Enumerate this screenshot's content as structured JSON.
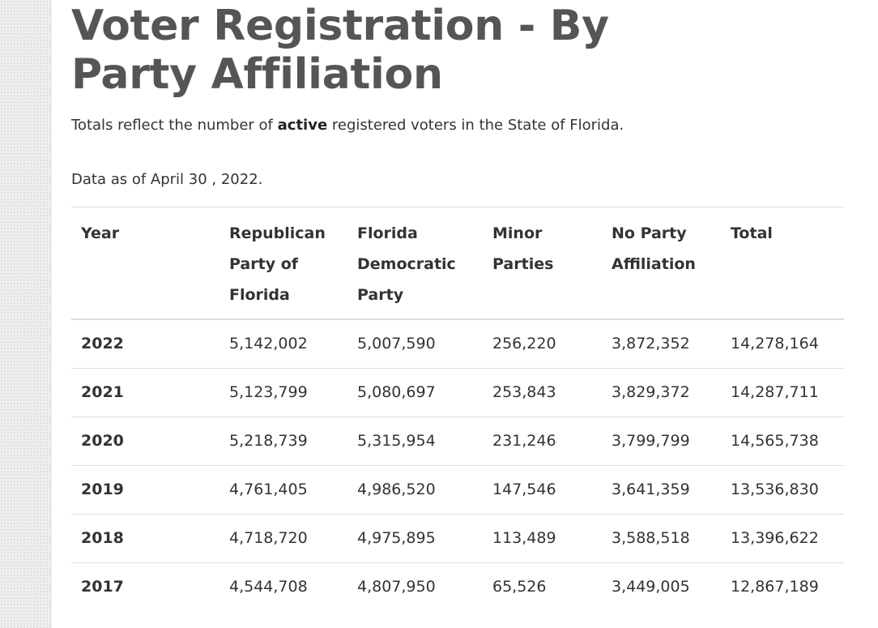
{
  "page": {
    "title": "Voter Registration - By Party Affiliation",
    "intro_before": "Totals reflect the number of ",
    "intro_bold": "active",
    "intro_after": " registered voters in the State of Florida.",
    "as_of": "Data as of April 30 , 2022."
  },
  "table": {
    "headers": [
      "Year",
      "Republican Party of Florida",
      "Florida Democratic Party",
      "Minor Parties",
      "No Party Affiliation",
      "Total"
    ],
    "rows": [
      [
        "2022",
        "5,142,002",
        "5,007,590",
        "256,220",
        "3,872,352",
        "14,278,164"
      ],
      [
        "2021",
        "5,123,799",
        "5,080,697",
        "253,843",
        "3,829,372",
        "14,287,711"
      ],
      [
        "2020",
        "5,218,739",
        "5,315,954",
        "231,246",
        "3,799,799",
        "14,565,738"
      ],
      [
        "2019",
        "4,761,405",
        "4,986,520",
        "147,546",
        "3,641,359",
        "13,536,830"
      ],
      [
        "2018",
        "4,718,720",
        "4,975,895",
        "113,489",
        "3,588,518",
        "13,396,622"
      ],
      [
        "2017",
        "4,544,708",
        "4,807,950",
        "65,526",
        "3,449,005",
        "12,867,189"
      ]
    ]
  }
}
